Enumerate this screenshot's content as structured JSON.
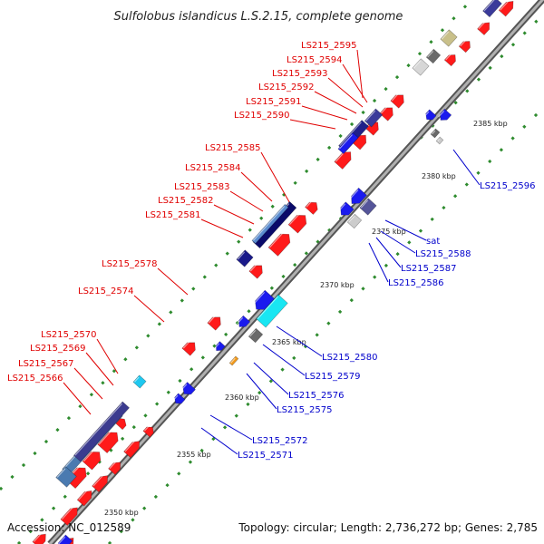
{
  "title": "Sulfolobus islandicus L.S.2.15, complete genome",
  "footer": {
    "accession": "Accession: NC_012589",
    "summary": "Topology: circular; Length: 2,736,272 bp; Genes: 2,785"
  },
  "colors": {
    "backbone": "#777777",
    "tick": "#2e8b2e",
    "forward_label": "#e00000",
    "reverse_label": "#0000cc",
    "forward_gene": "#ff1010",
    "reverse_gene": "#1a1aee",
    "leader": "#e00000",
    "reverse_leader": "#0000cc"
  },
  "scale_labels": [
    {
      "text": "2350 kbp",
      "kbp": 2350
    },
    {
      "text": "2355 kbp",
      "kbp": 2355
    },
    {
      "text": "2360 kbp",
      "kbp": 2360
    },
    {
      "text": "2365 kbp",
      "kbp": 2365
    },
    {
      "text": "2370 kbp",
      "kbp": 2370
    },
    {
      "text": "2375 kbp",
      "kbp": 2375
    },
    {
      "text": "2380 kbp",
      "kbp": 2380
    },
    {
      "text": "2385 kbp",
      "kbp": 2385
    }
  ],
  "forward_labels": [
    "LS215_2595",
    "LS215_2594",
    "LS215_2593",
    "LS215_2592",
    "LS215_2591",
    "LS215_2590",
    "LS215_2585",
    "LS215_2584",
    "LS215_2583",
    "LS215_2582",
    "LS215_2581",
    "LS215_2578",
    "LS215_2574",
    "LS215_2570",
    "LS215_2569",
    "LS215_2567",
    "LS215_2566"
  ],
  "reverse_labels": [
    "LS215_2596",
    "sat",
    "LS215_2588",
    "LS215_2587",
    "LS215_2586",
    "LS215_2580",
    "LS215_2579",
    "LS215_2576",
    "LS215_2575",
    "LS215_2572",
    "LS215_2571"
  ]
}
